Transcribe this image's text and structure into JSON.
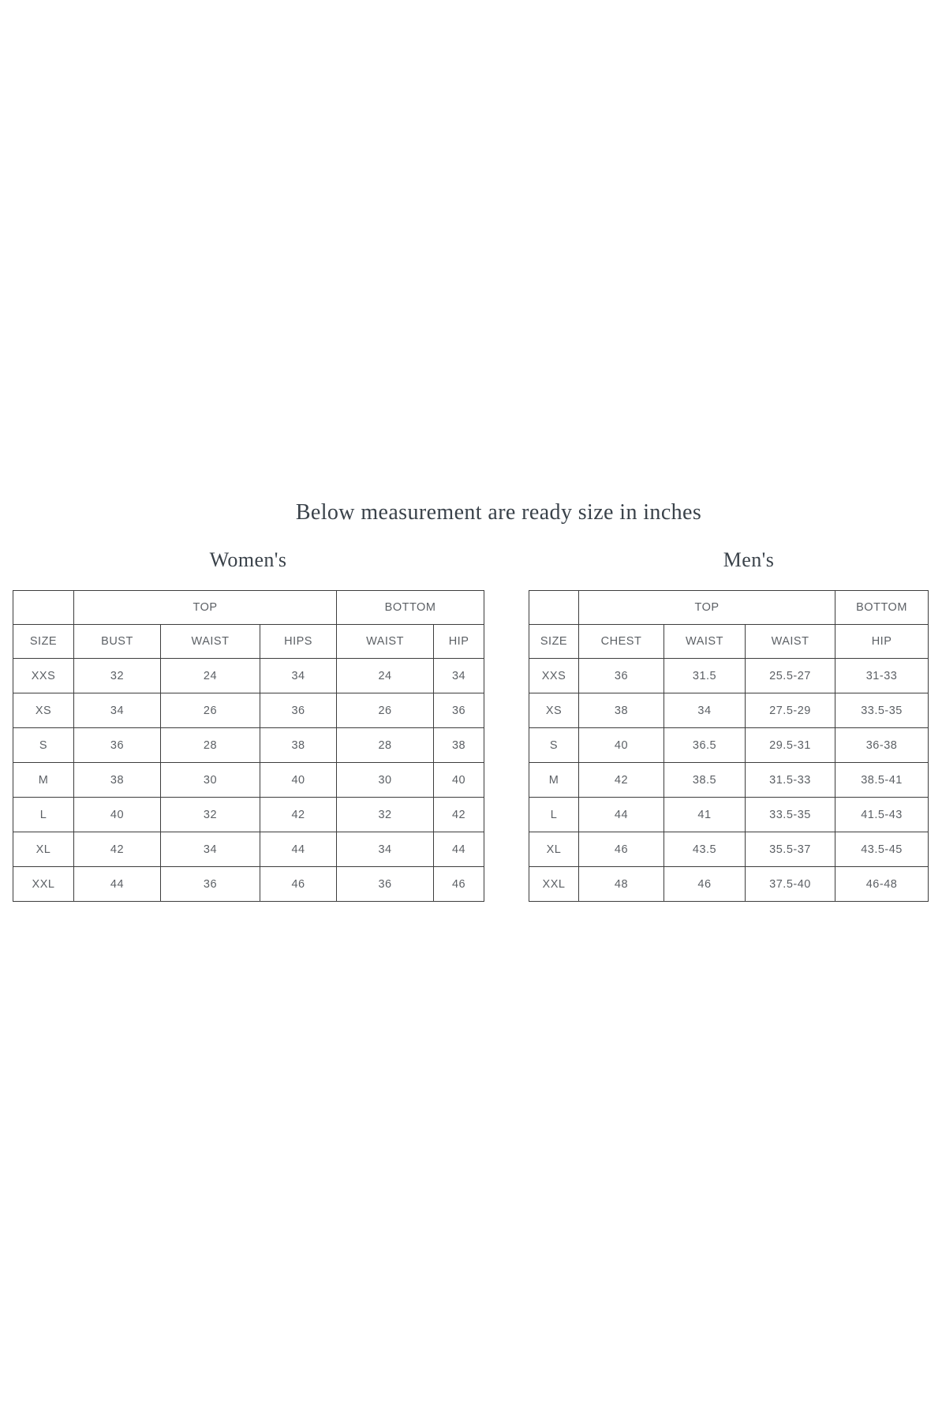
{
  "page": {
    "title": "Below measurement are ready size in inches"
  },
  "colors": {
    "background": "#ffffff",
    "heading_text": "#3a424a",
    "table_text": "#5c6065",
    "table_border": "#3d3d3d"
  },
  "womens": {
    "heading": "Women's",
    "group_top": "TOP",
    "group_bottom": "BOTTOM",
    "columns": [
      "SIZE",
      "BUST",
      "WAIST",
      "HIPS",
      "WAIST",
      "HIP"
    ],
    "rows": [
      [
        "XXS",
        "32",
        "24",
        "34",
        "24",
        "34"
      ],
      [
        "XS",
        "34",
        "26",
        "36",
        "26",
        "36"
      ],
      [
        "S",
        "36",
        "28",
        "38",
        "28",
        "38"
      ],
      [
        "M",
        "38",
        "30",
        "40",
        "30",
        "40"
      ],
      [
        "L",
        "40",
        "32",
        "42",
        "32",
        "42"
      ],
      [
        "XL",
        "42",
        "34",
        "44",
        "34",
        "44"
      ],
      [
        "XXL",
        "44",
        "36",
        "46",
        "36",
        "46"
      ]
    ]
  },
  "mens": {
    "heading": "Men's",
    "group_top": "TOP",
    "group_bottom": "BOTTOM",
    "columns": [
      "SIZE",
      "CHEST",
      "WAIST",
      "WAIST",
      "HIP"
    ],
    "rows": [
      [
        "XXS",
        "36",
        "31.5",
        "25.5-27",
        "31-33"
      ],
      [
        "XS",
        "38",
        "34",
        "27.5-29",
        "33.5-35"
      ],
      [
        "S",
        "40",
        "36.5",
        "29.5-31",
        "36-38"
      ],
      [
        "M",
        "42",
        "38.5",
        "31.5-33",
        "38.5-41"
      ],
      [
        "L",
        "44",
        "41",
        "33.5-35",
        "41.5-43"
      ],
      [
        "XL",
        "46",
        "43.5",
        "35.5-37",
        "43.5-45"
      ],
      [
        "XXL",
        "48",
        "46",
        "37.5-40",
        "46-48"
      ]
    ]
  },
  "chart_data": [
    {
      "type": "table",
      "title": "Women's",
      "subtitle": "Below measurement are ready size in inches",
      "column_groups": [
        {
          "label": "",
          "span": 1
        },
        {
          "label": "TOP",
          "span": 3
        },
        {
          "label": "BOTTOM",
          "span": 2
        }
      ],
      "columns": [
        "SIZE",
        "BUST",
        "WAIST",
        "HIPS",
        "WAIST",
        "HIP"
      ],
      "rows": [
        [
          "XXS",
          "32",
          "24",
          "34",
          "24",
          "34"
        ],
        [
          "XS",
          "34",
          "26",
          "36",
          "26",
          "36"
        ],
        [
          "S",
          "36",
          "28",
          "38",
          "28",
          "38"
        ],
        [
          "M",
          "38",
          "30",
          "40",
          "30",
          "40"
        ],
        [
          "L",
          "40",
          "32",
          "42",
          "32",
          "42"
        ],
        [
          "XL",
          "42",
          "34",
          "44",
          "34",
          "44"
        ],
        [
          "XXL",
          "44",
          "36",
          "46",
          "36",
          "46"
        ]
      ]
    },
    {
      "type": "table",
      "title": "Men's",
      "subtitle": "Below measurement are ready size in inches",
      "column_groups": [
        {
          "label": "",
          "span": 1
        },
        {
          "label": "TOP",
          "span": 3
        },
        {
          "label": "BOTTOM",
          "span": 1
        }
      ],
      "columns": [
        "SIZE",
        "CHEST",
        "WAIST",
        "WAIST",
        "HIP"
      ],
      "rows": [
        [
          "XXS",
          "36",
          "31.5",
          "25.5-27",
          "31-33"
        ],
        [
          "XS",
          "38",
          "34",
          "27.5-29",
          "33.5-35"
        ],
        [
          "S",
          "40",
          "36.5",
          "29.5-31",
          "36-38"
        ],
        [
          "M",
          "42",
          "38.5",
          "31.5-33",
          "38.5-41"
        ],
        [
          "L",
          "44",
          "41",
          "33.5-35",
          "41.5-43"
        ],
        [
          "XL",
          "46",
          "43.5",
          "35.5-37",
          "43.5-45"
        ],
        [
          "XXL",
          "48",
          "46",
          "37.5-40",
          "46-48"
        ]
      ]
    }
  ]
}
